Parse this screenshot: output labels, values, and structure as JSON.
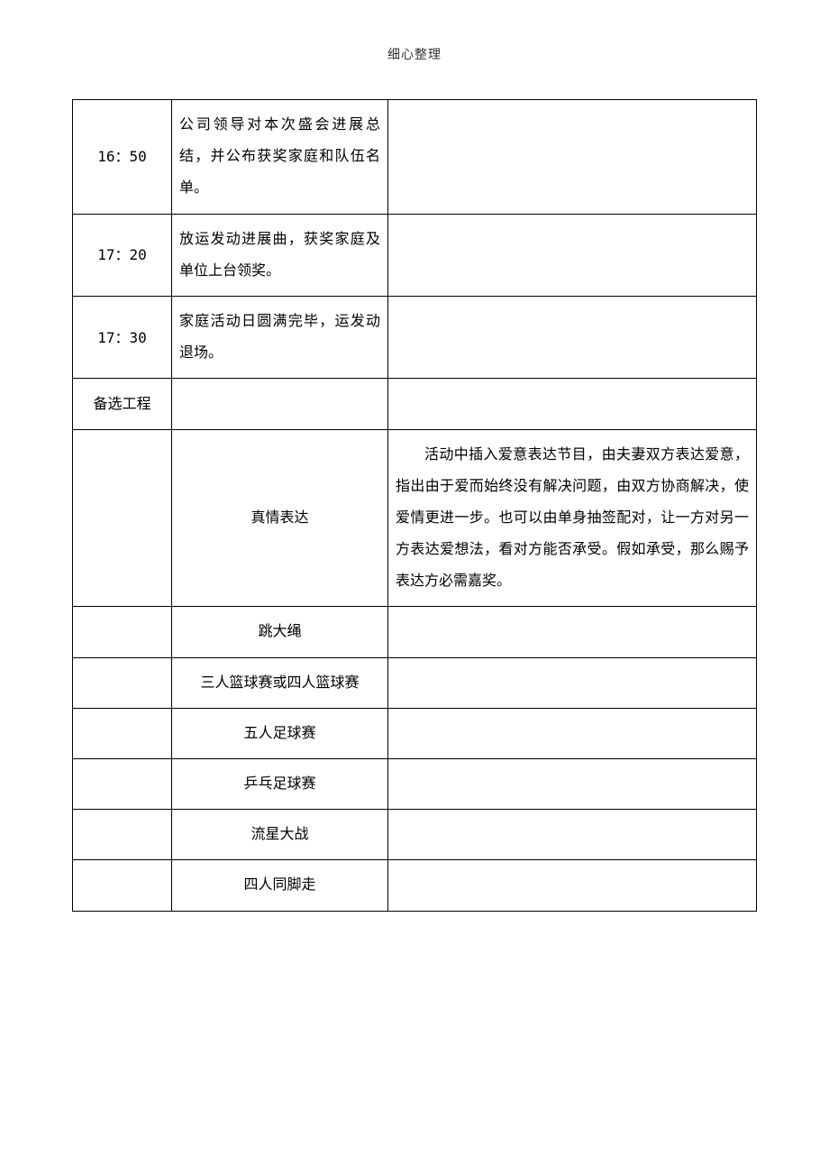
{
  "page": {
    "header": "细心整理"
  },
  "table": {
    "rows": [
      {
        "time": "16：50",
        "activity": "公司领导对本次盛会进展总结，并公布获奖家庭和队伍名单。",
        "desc": ""
      },
      {
        "time": "17：20",
        "activity": "放运发动进展曲，获奖家庭及单位上台领奖。",
        "desc": ""
      },
      {
        "time": "17：30",
        "activity": "家庭活动日圆满完毕，运发动退场。",
        "desc": ""
      },
      {
        "time": "备选工程",
        "activity": "",
        "desc": ""
      },
      {
        "time": "",
        "activity": "真情表达",
        "desc": "活动中插入爱意表达节目，由夫妻双方表达爱意，指出由于爱而始终没有解决问题，由双方协商解决，使爱情更进一步。也可以由单身抽签配对，让一方对另一方表达爱想法，看对方能否承受。假如承受，那么赐予表达方必需嘉奖。"
      },
      {
        "time": "",
        "activity": "跳大绳",
        "desc": ""
      },
      {
        "time": "",
        "activity": "三人篮球赛或四人篮球赛",
        "desc": ""
      },
      {
        "time": "",
        "activity": "五人足球赛",
        "desc": ""
      },
      {
        "time": "",
        "activity": "乒乓足球赛",
        "desc": ""
      },
      {
        "time": "",
        "activity": "流星大战",
        "desc": ""
      },
      {
        "time": "",
        "activity": "四人同脚走",
        "desc": ""
      }
    ]
  },
  "styles": {
    "page_bg": "#ffffff",
    "text_color": "#000000",
    "header_color": "#333333",
    "border_color": "#000000",
    "body_fontsize": 16,
    "header_fontsize": 14,
    "line_height": 2.2,
    "col_widths": {
      "time": 110,
      "activity": 240
    }
  }
}
